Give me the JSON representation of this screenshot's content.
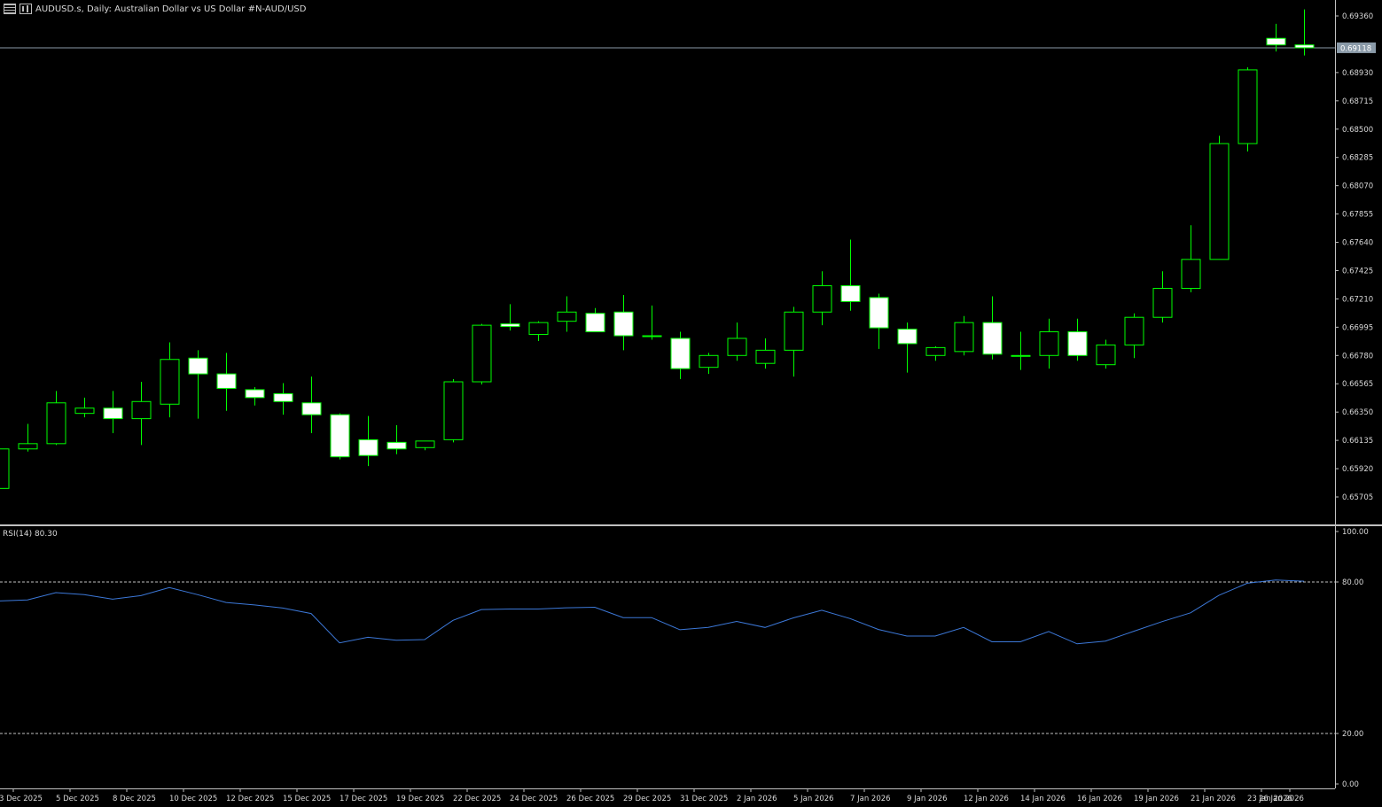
{
  "header": {
    "symbol": "AUDUSD.s",
    "timeframe": "Daily",
    "description": "Australian Dollar vs US Dollar #N-AUD/USD",
    "title": "AUDUSD.s, Daily:  Australian Dollar vs US Dollar #N-AUD/USD"
  },
  "rsi": {
    "label": "RSI(14) 80.30",
    "value": 80.3,
    "levels": [
      20,
      80
    ]
  },
  "current_price": "0.69118",
  "colors": {
    "background": "#000000",
    "bull": "#00ff00",
    "bear_fill": "#ffffff",
    "rsi_line": "#3c78d8",
    "grid": "#c0c0c0",
    "text": "#d8d8d8"
  },
  "chart_data": [
    {
      "type": "candlestick",
      "ylim": [
        0.6555,
        0.695
      ],
      "yticks": [
        "0.69360",
        "0.68930",
        "0.68715",
        "0.68500",
        "0.68285",
        "0.68070",
        "0.67855",
        "0.67640",
        "0.67425",
        "0.67210",
        "0.66995",
        "0.66780",
        "0.66565",
        "0.66350",
        "0.66135",
        "0.65920",
        "0.65705"
      ],
      "x_labels": [
        "3 Dec 2025",
        "5 Dec 2025",
        "8 Dec 2025",
        "10 Dec 2025",
        "12 Dec 2025",
        "15 Dec 2025",
        "17 Dec 2025",
        "19 Dec 2025",
        "22 Dec 2025",
        "24 Dec 2025",
        "26 Dec 2025",
        "29 Dec 2025",
        "31 Dec 2025",
        "2 Jan 2026",
        "5 Jan 2026",
        "7 Jan 2026",
        "9 Jan 2026",
        "12 Jan 2026",
        "14 Jan 2026",
        "16 Jan 2026",
        "19 Jan 2026",
        "21 Jan 2026",
        "23 Jan 2026",
        "26 Jan 2026"
      ],
      "ohlc": [
        [
          0.6577,
          0.6608,
          0.6577,
          0.6607
        ],
        [
          0.6607,
          0.6626,
          0.6605,
          0.6611
        ],
        [
          0.6611,
          0.6651,
          0.661,
          0.6642
        ],
        [
          0.6634,
          0.6646,
          0.6631,
          0.6638
        ],
        [
          0.6638,
          0.6651,
          0.6619,
          0.663
        ],
        [
          0.663,
          0.6658,
          0.661,
          0.6643
        ],
        [
          0.6641,
          0.6688,
          0.6631,
          0.6675
        ],
        [
          0.6676,
          0.6682,
          0.663,
          0.6664
        ],
        [
          0.6664,
          0.668,
          0.6636,
          0.6653
        ],
        [
          0.6652,
          0.6654,
          0.664,
          0.6646
        ],
        [
          0.6649,
          0.6657,
          0.6633,
          0.6643
        ],
        [
          0.6642,
          0.6662,
          0.6619,
          0.6633
        ],
        [
          0.6633,
          0.6634,
          0.6599,
          0.6601
        ],
        [
          0.6614,
          0.6632,
          0.6594,
          0.6602
        ],
        [
          0.6612,
          0.6625,
          0.6603,
          0.6607
        ],
        [
          0.6608,
          0.6613,
          0.6606,
          0.6613
        ],
        [
          0.6614,
          0.666,
          0.6612,
          0.6658
        ],
        [
          0.6658,
          0.6702,
          0.6656,
          0.6701
        ],
        [
          0.6702,
          0.6717,
          0.6697,
          0.67
        ],
        [
          0.6694,
          0.6704,
          0.6689,
          0.6703
        ],
        [
          0.6704,
          0.6723,
          0.6696,
          0.6711
        ],
        [
          0.671,
          0.6714,
          0.6696,
          0.6696
        ],
        [
          0.6711,
          0.6724,
          0.6682,
          0.6693
        ],
        [
          0.6693,
          0.6716,
          0.669,
          0.6693
        ],
        [
          0.6691,
          0.6696,
          0.666,
          0.6668
        ],
        [
          0.6669,
          0.668,
          0.6664,
          0.6678
        ],
        [
          0.6678,
          0.6703,
          0.6674,
          0.6691
        ],
        [
          0.6672,
          0.6691,
          0.6668,
          0.6682
        ],
        [
          0.6682,
          0.6715,
          0.6662,
          0.6711
        ],
        [
          0.6711,
          0.6742,
          0.6701,
          0.6731
        ],
        [
          0.6731,
          0.6766,
          0.6712,
          0.6719
        ],
        [
          0.6722,
          0.6725,
          0.6683,
          0.6699
        ],
        [
          0.6698,
          0.6703,
          0.6665,
          0.6687
        ],
        [
          0.6678,
          0.6685,
          0.6674,
          0.6684
        ],
        [
          0.6681,
          0.6708,
          0.6678,
          0.6703
        ],
        [
          0.6703,
          0.6723,
          0.6675,
          0.6679
        ],
        [
          0.6678,
          0.6696,
          0.6667,
          0.6678
        ],
        [
          0.6678,
          0.6706,
          0.6668,
          0.6696
        ],
        [
          0.6696,
          0.6706,
          0.6674,
          0.6678
        ],
        [
          0.6671,
          0.669,
          0.6668,
          0.6686
        ],
        [
          0.6686,
          0.671,
          0.6676,
          0.6707
        ],
        [
          0.6707,
          0.6742,
          0.6703,
          0.6729
        ],
        [
          0.6729,
          0.6777,
          0.6726,
          0.6751
        ],
        [
          0.6751,
          0.6845,
          0.6751,
          0.6839
        ],
        [
          0.6839,
          0.6897,
          0.6833,
          0.6895
        ],
        [
          0.6919,
          0.693,
          0.6909,
          0.6914
        ],
        [
          0.6914,
          0.6941,
          0.6906,
          0.69118
        ]
      ]
    },
    {
      "type": "line",
      "title": "RSI(14)",
      "ylim": [
        0,
        100
      ],
      "yticks": [
        "100.00",
        "80.00",
        "20.00",
        "0.00"
      ],
      "levels": [
        20,
        80
      ],
      "values": [
        72.5,
        72.9,
        75.8,
        75.0,
        73.2,
        74.6,
        77.8,
        75.0,
        71.9,
        70.9,
        69.7,
        67.5,
        55.9,
        58.1,
        56.9,
        57.2,
        64.8,
        69.1,
        69.3,
        69.3,
        69.8,
        70.0,
        65.9,
        65.9,
        61.1,
        62.0,
        64.4,
        62.0,
        65.8,
        68.8,
        65.5,
        61.2,
        58.6,
        58.6,
        62.0,
        56.3,
        56.3,
        60.4,
        55.5,
        56.6,
        60.5,
        64.3,
        67.8,
        74.7,
        79.5,
        80.8,
        80.3
      ]
    }
  ]
}
